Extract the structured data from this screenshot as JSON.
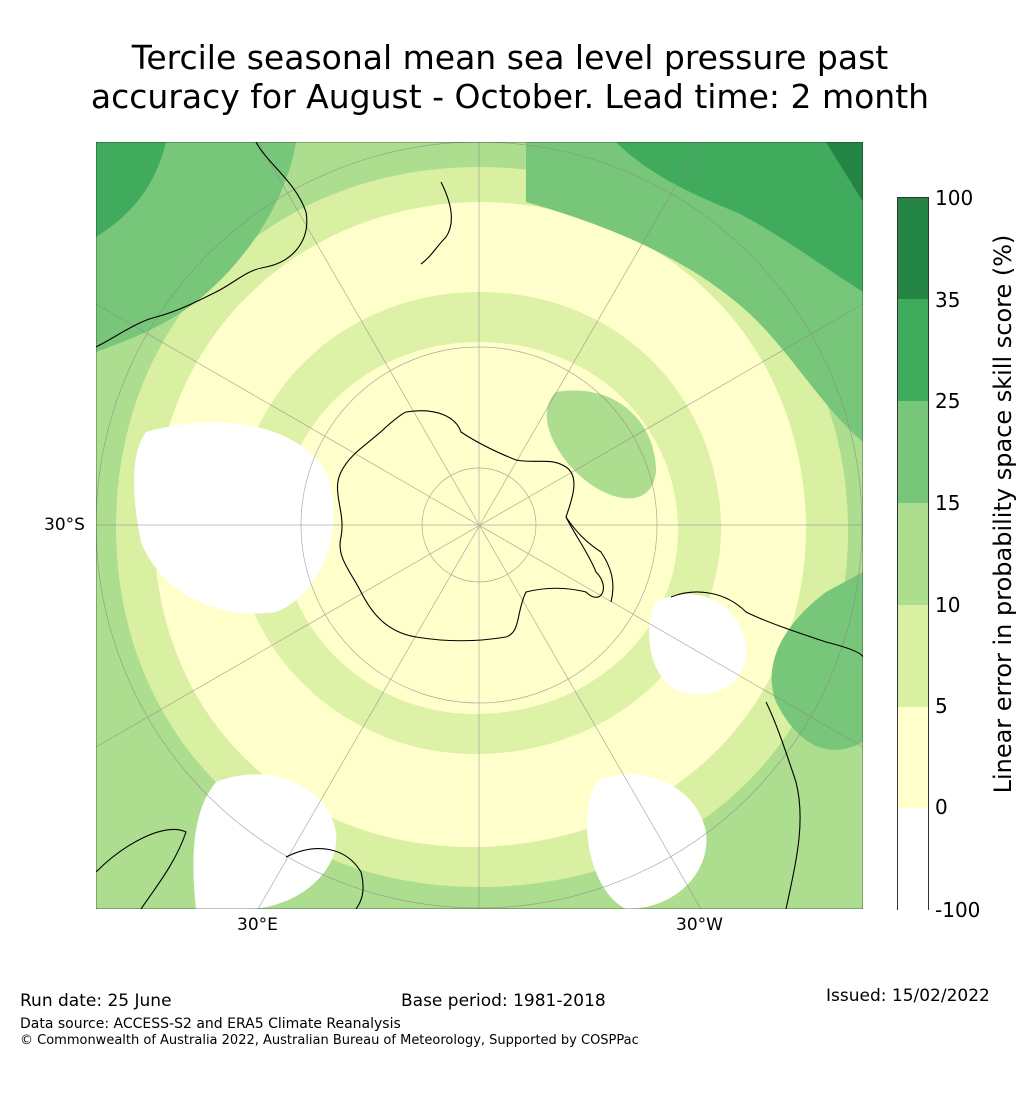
{
  "title": {
    "line1": "Tercile seasonal mean sea level pressure past",
    "line2": "accuracy for August - October. Lead time: 2 month"
  },
  "map": {
    "projection": "south-polar-stereographic",
    "tick_labels": {
      "lat": "30°S",
      "lon_east": "30°E",
      "lon_west": "30°W"
    }
  },
  "colorbar": {
    "title": "Linear error in probability space skill score (%)",
    "levels": [
      "100",
      "35",
      "25",
      "15",
      "10",
      "5",
      "0",
      "-100"
    ],
    "colors": [
      "#238443",
      "#41ab5d",
      "#78c679",
      "#addd8e",
      "#d9f0a3",
      "#ffffcc",
      "#ffffff"
    ]
  },
  "footer": {
    "run_date": "Run date: 25 June",
    "base_period": "Base period: 1981-2018",
    "issued": "Issued: 15/02/2022",
    "data_source": "Data source: ACCESS-S2 and ERA5 Climate Reanalysis",
    "copyright": "© Commonwealth of Australia 2022, Australian Bureau of Meteorology, Supported by COSPPac"
  }
}
